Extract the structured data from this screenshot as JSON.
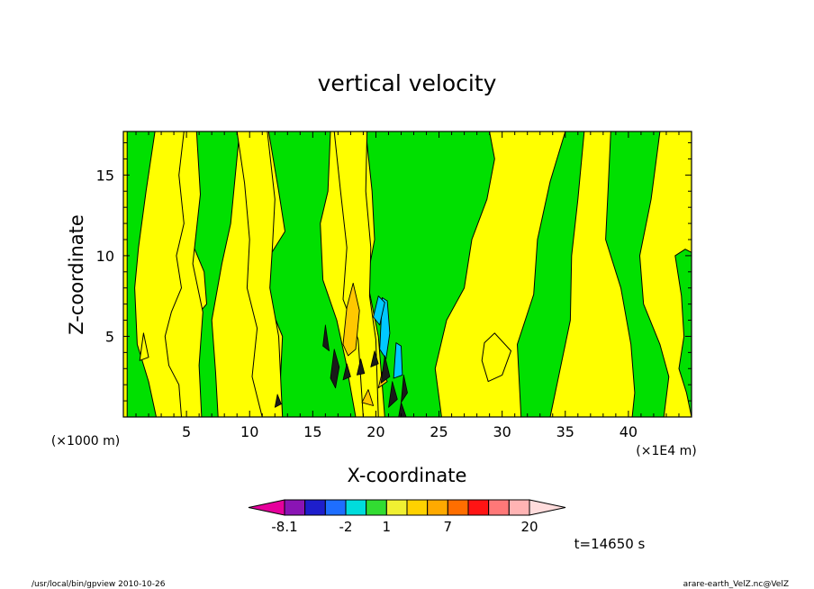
{
  "chart_data": {
    "type": "heatmap",
    "title": "vertical velocity",
    "xlabel": "X-coordinate",
    "ylabel": "Z-coordinate",
    "x_unit_left": "(×1000 m)",
    "x_unit_right": "(×1E4 m)",
    "xlim": [
      0,
      45
    ],
    "ylim": [
      0,
      17.7
    ],
    "xticks": [
      5,
      10,
      15,
      20,
      25,
      30,
      35,
      40
    ],
    "yticks": [
      5,
      10,
      15
    ],
    "colorbar": {
      "labels": [
        "-8.1",
        "-2",
        "1",
        "7",
        "20"
      ],
      "colors": [
        "#e6009c",
        "#8a14b4",
        "#1e1ecc",
        "#1e6eff",
        "#00dcdc",
        "#32dc32",
        "#f0f032",
        "#ffd200",
        "#ffaa00",
        "#ff6e00",
        "#ff1414",
        "#ff7878",
        "#ffb4b4",
        "#ffdcdc"
      ]
    },
    "background_colors": {
      "negative": "#00e000",
      "positive": "#ffff00",
      "strong_positive": "#ffc800",
      "strong_negative": "#00c8ff"
    },
    "green_regions": [
      [
        [
          0.3,
          0
        ],
        [
          0.3,
          17.7
        ],
        [
          2.5,
          17.7
        ],
        [
          1.8,
          14
        ],
        [
          1.2,
          10.5
        ],
        [
          0.9,
          8
        ],
        [
          1.1,
          4.5
        ],
        [
          2,
          2.2
        ],
        [
          2.6,
          0
        ]
      ],
      [
        [
          5.4,
          17.7
        ],
        [
          6,
          14
        ],
        [
          5.6,
          10.5
        ],
        [
          6.4,
          9
        ],
        [
          6.6,
          7
        ],
        [
          5.5,
          6
        ],
        [
          4.8,
          4
        ],
        [
          5.2,
          0
        ],
        [
          7.5,
          0
        ],
        [
          7.3,
          2.8
        ],
        [
          7,
          6
        ],
        [
          7.8,
          9.5
        ],
        [
          8.5,
          12
        ],
        [
          9.2,
          17.7
        ]
      ],
      [
        [
          11.5,
          17.7
        ],
        [
          12.3,
          14
        ],
        [
          12.8,
          11.5
        ],
        [
          11.6,
          10
        ],
        [
          11.3,
          7.5
        ],
        [
          12.6,
          5
        ],
        [
          12.3,
          0
        ],
        [
          18.4,
          0
        ],
        [
          17.6,
          3.5
        ],
        [
          16.9,
          6
        ],
        [
          15.8,
          8.5
        ],
        [
          15.6,
          12
        ],
        [
          16.2,
          14
        ],
        [
          16.4,
          17.7
        ]
      ],
      [
        [
          19.2,
          17.7
        ],
        [
          19.7,
          14
        ],
        [
          19.9,
          11
        ],
        [
          19.3,
          8.5
        ],
        [
          20.2,
          5
        ],
        [
          20.7,
          0
        ],
        [
          25.2,
          0
        ],
        [
          24.7,
          3
        ],
        [
          25.6,
          6
        ],
        [
          27,
          8
        ],
        [
          27.6,
          11
        ],
        [
          28.8,
          13.5
        ],
        [
          29.4,
          16
        ],
        [
          29,
          17.7
        ]
      ],
      [
        [
          31.5,
          0
        ],
        [
          31.2,
          4.5
        ],
        [
          32.5,
          7.6
        ],
        [
          32.8,
          11
        ],
        [
          33.8,
          14.6
        ],
        [
          35,
          17.7
        ],
        [
          36.5,
          17.7
        ],
        [
          36,
          13.5
        ],
        [
          35.5,
          10
        ],
        [
          35.4,
          6
        ],
        [
          34.6,
          3
        ],
        [
          33.8,
          0
        ]
      ],
      [
        [
          38.6,
          17.7
        ],
        [
          38.4,
          14.3
        ],
        [
          38.2,
          11
        ],
        [
          39.4,
          8
        ],
        [
          40.2,
          4.5
        ],
        [
          40.5,
          1.5
        ],
        [
          40.3,
          0
        ],
        [
          42.8,
          0
        ],
        [
          43.2,
          2.5
        ],
        [
          42.5,
          4.5
        ],
        [
          41.2,
          7
        ],
        [
          40.9,
          10
        ],
        [
          41.8,
          13.5
        ],
        [
          42.5,
          17.7
        ]
      ],
      [
        [
          43.7,
          10
        ],
        [
          44.2,
          7.5
        ],
        [
          44.4,
          5
        ],
        [
          44,
          3
        ],
        [
          44.6,
          1.5
        ],
        [
          45,
          0
        ],
        [
          45,
          10.2
        ],
        [
          44.5,
          10.4
        ]
      ]
    ],
    "yellow_islands": [
      [
        [
          4.8,
          17.7
        ],
        [
          4.4,
          15
        ],
        [
          4.8,
          12
        ],
        [
          4.2,
          10
        ],
        [
          4.6,
          8
        ],
        [
          3.8,
          6.5
        ],
        [
          3.3,
          5
        ],
        [
          3.6,
          3.2
        ],
        [
          4.4,
          2
        ],
        [
          4.6,
          0
        ],
        [
          6.2,
          0
        ],
        [
          6.0,
          3.2
        ],
        [
          6.3,
          6.5
        ],
        [
          5.5,
          9.5
        ],
        [
          6.1,
          13.8
        ],
        [
          5.8,
          17.7
        ]
      ],
      [
        [
          9,
          17.7
        ],
        [
          9.6,
          14.5
        ],
        [
          10,
          11
        ],
        [
          9.8,
          8
        ],
        [
          10.6,
          5.5
        ],
        [
          10.2,
          2.5
        ],
        [
          11,
          0
        ],
        [
          12.6,
          0
        ],
        [
          12.3,
          5
        ],
        [
          11.6,
          8
        ],
        [
          11.8,
          10.5
        ],
        [
          12,
          13.5
        ],
        [
          11.4,
          17.7
        ]
      ],
      [
        [
          16.7,
          17.7
        ],
        [
          17.2,
          14
        ],
        [
          17.7,
          10.5
        ],
        [
          17.4,
          7.3
        ],
        [
          18.6,
          4.8
        ],
        [
          19,
          0
        ],
        [
          20.2,
          0
        ],
        [
          20.0,
          4.8
        ],
        [
          19.5,
          7.5
        ],
        [
          19.6,
          10.5
        ],
        [
          19.2,
          14
        ],
        [
          19.3,
          17.7
        ]
      ],
      [
        [
          28.4,
          3.5
        ],
        [
          28.9,
          2.2
        ],
        [
          30,
          2.6
        ],
        [
          30.7,
          4.1
        ],
        [
          29.4,
          5.2
        ],
        [
          28.6,
          4.6
        ]
      ],
      [
        [
          1.3,
          3.5
        ],
        [
          1.6,
          5.2
        ],
        [
          2,
          3.7
        ]
      ]
    ],
    "orange_cells": [
      [
        [
          17.4,
          4.5
        ],
        [
          17.7,
          6.8
        ],
        [
          18.2,
          8.3
        ],
        [
          18.7,
          6.6
        ],
        [
          18.4,
          4.2
        ],
        [
          17.8,
          3.8
        ]
      ],
      [
        [
          20.2,
          1.8
        ],
        [
          20.5,
          2.8
        ],
        [
          20.9,
          2.2
        ]
      ],
      [
        [
          18.9,
          0.9
        ],
        [
          19.4,
          1.7
        ],
        [
          19.8,
          0.7
        ]
      ]
    ],
    "cyan_cells": [
      [
        [
          20.3,
          4.2
        ],
        [
          20.5,
          7.4
        ],
        [
          20.9,
          7.2
        ],
        [
          21.1,
          5.2
        ],
        [
          20.8,
          3.6
        ]
      ],
      [
        [
          21.4,
          2.4
        ],
        [
          21.6,
          4.6
        ],
        [
          22,
          4.4
        ],
        [
          22.1,
          2.6
        ]
      ],
      [
        [
          19.8,
          6.2
        ],
        [
          20.2,
          7.5
        ],
        [
          20.7,
          7.1
        ],
        [
          20.3,
          5.7
        ]
      ]
    ],
    "dark_cells": [
      [
        [
          15.8,
          4.4
        ],
        [
          16,
          5.7
        ],
        [
          16.3,
          4.1
        ]
      ],
      [
        [
          16.4,
          2.4
        ],
        [
          16.7,
          4.2
        ],
        [
          17.1,
          3.1
        ],
        [
          16.8,
          1.8
        ]
      ],
      [
        [
          18.5,
          2.6
        ],
        [
          18.8,
          3.6
        ],
        [
          19.1,
          2.7
        ]
      ],
      [
        [
          19.6,
          3.1
        ],
        [
          19.9,
          4.1
        ],
        [
          20.2,
          3.3
        ]
      ],
      [
        [
          20.4,
          2.1
        ],
        [
          20.7,
          3.8
        ],
        [
          21.1,
          2.5
        ]
      ],
      [
        [
          21,
          0.6
        ],
        [
          21.3,
          2.2
        ],
        [
          21.7,
          1.1
        ]
      ],
      [
        [
          22,
          0.9
        ],
        [
          22.2,
          2.6
        ],
        [
          22.5,
          1.5
        ]
      ],
      [
        [
          21.8,
          0
        ],
        [
          22,
          0.9
        ],
        [
          22.4,
          0
        ]
      ],
      [
        [
          17.4,
          2.3
        ],
        [
          17.7,
          3.3
        ],
        [
          18,
          2.5
        ]
      ],
      [
        [
          12,
          0.6
        ],
        [
          12.2,
          1.4
        ],
        [
          12.5,
          0.8
        ]
      ]
    ]
  },
  "timestamp_label": "t=14650 s",
  "footer": {
    "left": "/usr/local/bin/gpview   2010-10-26",
    "right": "arare-earth_VelZ.nc@VelZ"
  }
}
